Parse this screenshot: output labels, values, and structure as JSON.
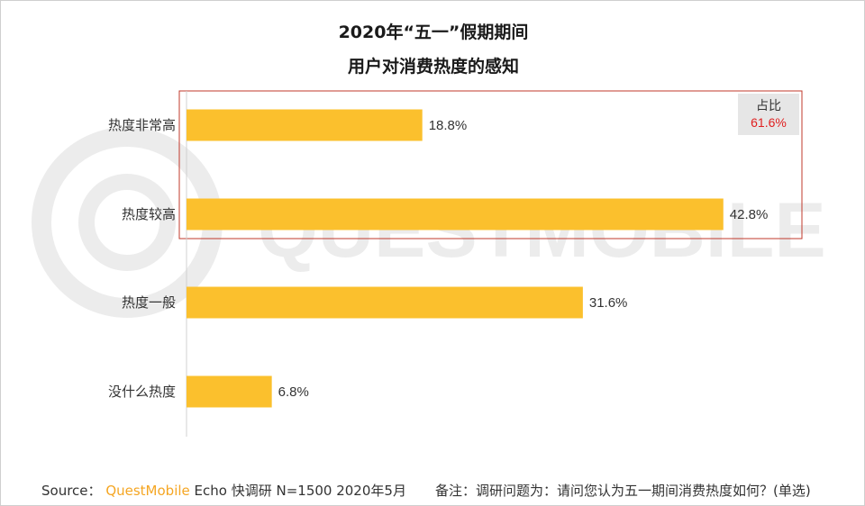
{
  "title_line1": "2020年“五一”假期期间",
  "title_line2": "用户对消费热度的感知",
  "chart_data": {
    "type": "bar",
    "orientation": "horizontal",
    "categories": [
      "热度非常高",
      "热度较高",
      "热度一般",
      "没什么热度"
    ],
    "values": [
      18.8,
      42.8,
      31.6,
      6.8
    ],
    "value_labels": [
      "18.8%",
      "42.8%",
      "31.6%",
      "6.8%"
    ],
    "bar_color": "#fbc02d",
    "highlight": {
      "categories": [
        "热度非常高",
        "热度较高"
      ],
      "box_color": "#c0392b",
      "label": "占比",
      "value": "61.6%",
      "value_color": "#e02020"
    }
  },
  "source": {
    "prefix": "Source：",
    "brand": "QuestMobile",
    "rest": "Echo 快调研 N=1500 2020年5月"
  },
  "note": "备注：调研问题为：请问您认为五一期间消费热度如何？(单选)",
  "watermark": "QUESTMOBILE"
}
